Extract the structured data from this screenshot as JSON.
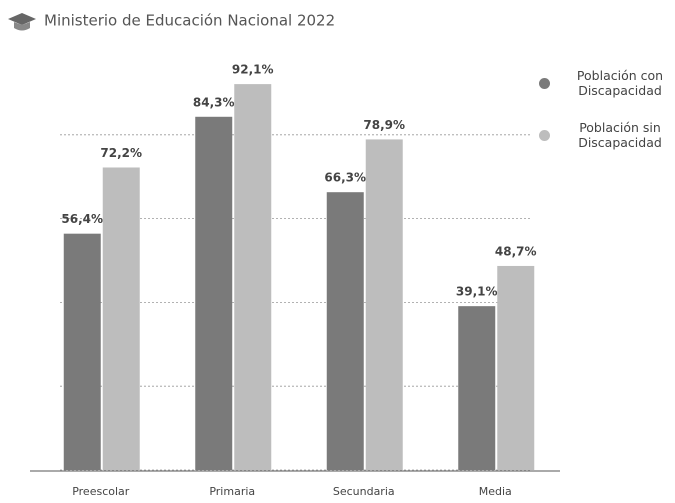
{
  "chart_data": {
    "type": "bar",
    "title": "Ministerio de Educación Nacional 2022",
    "categories": [
      "Preescolar",
      "Primaria",
      "Secundaria",
      "Media"
    ],
    "series": [
      {
        "name": "Población con Discapacidad",
        "color": "#7a7a7a",
        "values": [
          56.4,
          84.3,
          66.3,
          39.1
        ],
        "value_labels": [
          "56,4%",
          "84,3%",
          "66,3%",
          "39,1%"
        ]
      },
      {
        "name": "Población sin Discapacidad",
        "color": "#bdbdbd",
        "values": [
          72.2,
          92.1,
          78.9,
          48.7
        ],
        "value_labels": [
          "72,2%",
          "92,1%",
          "78,9%",
          "48,7%"
        ]
      }
    ],
    "ylim": [
      0,
      100
    ],
    "yticks": [
      0,
      20,
      40,
      60,
      80
    ],
    "grid": true,
    "ytick_labels": false,
    "legend": "right"
  }
}
